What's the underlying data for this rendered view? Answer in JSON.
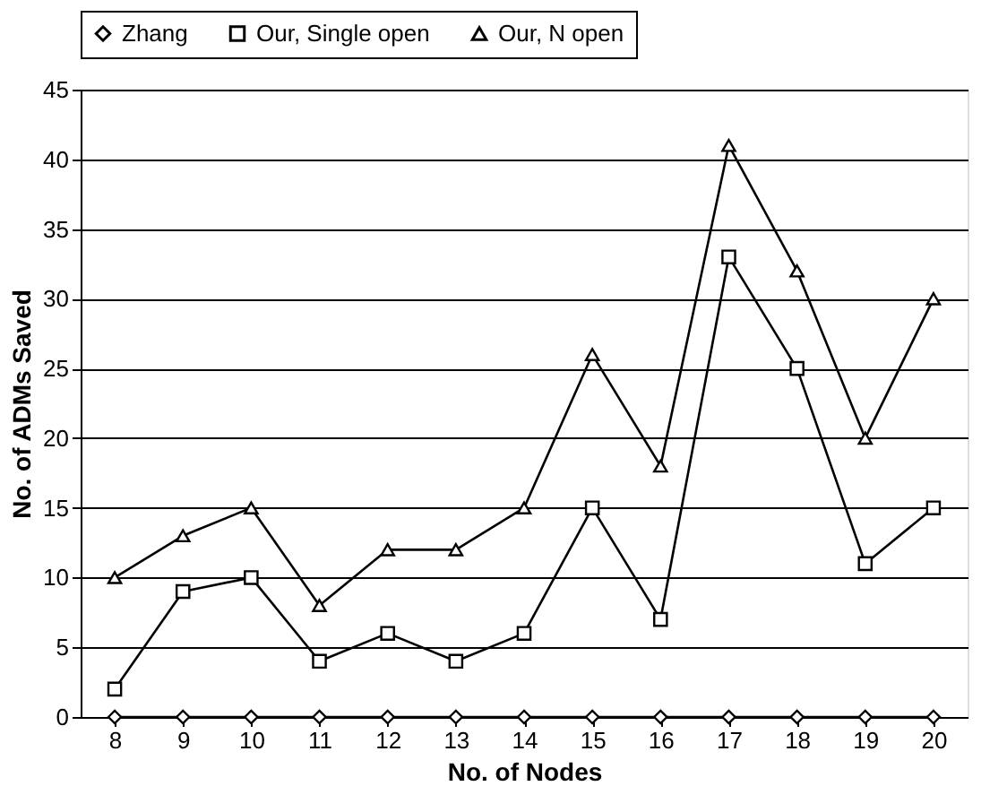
{
  "chart_data": {
    "type": "line",
    "xlabel": "No. of Nodes",
    "ylabel": "No. of ADMs Saved",
    "categories": [
      "8",
      "9",
      "10",
      "11",
      "12",
      "13",
      "14",
      "15",
      "16",
      "17",
      "18",
      "19",
      "20"
    ],
    "series": [
      {
        "name": "Zhang",
        "color": "#000000",
        "marker": "diamond",
        "values": [
          0,
          0,
          0,
          0,
          0,
          0,
          0,
          0,
          0,
          0,
          0,
          0,
          0
        ]
      },
      {
        "name": "Our, Single open",
        "color": "#000000",
        "marker": "square",
        "values": [
          2,
          9,
          10,
          4,
          6,
          4,
          6,
          15,
          7,
          33,
          25,
          11,
          15
        ]
      },
      {
        "name": "Our, N open",
        "color": "#000000",
        "marker": "triangle",
        "values": [
          10,
          13,
          15,
          8,
          12,
          12,
          15,
          26,
          18,
          41,
          32,
          20,
          30
        ]
      }
    ],
    "ylim": [
      0,
      45
    ],
    "yticks": [
      0,
      5,
      10,
      15,
      20,
      25,
      30,
      35,
      40,
      45
    ],
    "grid": "y",
    "legend": "top",
    "line_style": "solid"
  }
}
